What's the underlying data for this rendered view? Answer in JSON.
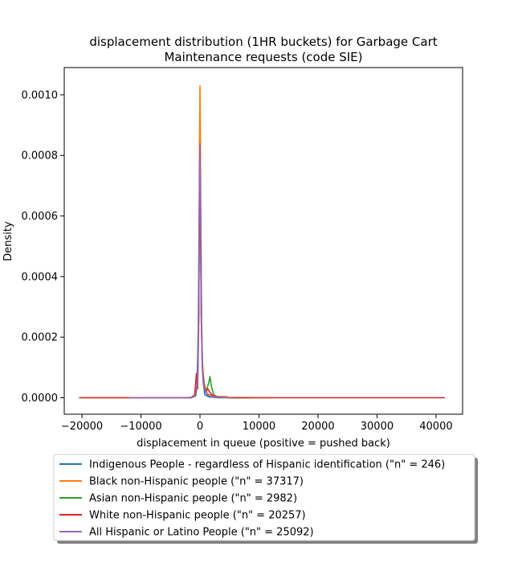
{
  "chart_data": {
    "type": "line",
    "title_line1": "displacement distribution (1HR buckets) for Garbage Cart",
    "title_line2": "Maintenance requests (code SIE)",
    "xlabel": "displacement in queue (positive = pushed back)",
    "ylabel": "Density",
    "xlim": [
      -23000,
      44500
    ],
    "ylim": [
      -5.44e-05,
      0.00109
    ],
    "x_ticks": [
      -20000,
      -10000,
      0,
      10000,
      20000,
      30000,
      40000
    ],
    "x_tick_labels": [
      "−20000",
      "−10000",
      "0",
      "10000",
      "20000",
      "30000",
      "40000"
    ],
    "y_ticks": [
      0.0,
      0.0002,
      0.0004,
      0.0006,
      0.0008,
      0.001
    ],
    "y_tick_labels": [
      "0.0000",
      "0.0002",
      "0.0004",
      "0.0006",
      "0.0008",
      "0.0010"
    ],
    "legend_position": "below plot",
    "series": [
      {
        "name": "Indigenous People - regardless of Hispanic identification (\"n\" = 246)",
        "color": "#1f77b4",
        "x": [
          -10000,
          -1500,
          -800,
          -500,
          -300,
          -150,
          0,
          150,
          300,
          500,
          800,
          1500,
          3000,
          9000
        ],
        "y": [
          0,
          0,
          5e-06,
          4e-05,
          0.00022,
          0.00058,
          0.0008,
          0.00058,
          0.00022,
          6e-05,
          1e-05,
          3e-06,
          0,
          0
        ]
      },
      {
        "name": "Black non-Hispanic people (\"n\" = 37317)",
        "color": "#ff7f0e",
        "x": [
          -20000,
          -2000,
          -800,
          -400,
          -200,
          -80,
          0,
          80,
          200,
          400,
          700,
          1000,
          1500,
          2500,
          4500,
          5000,
          12000
        ],
        "y": [
          0,
          0,
          5e-06,
          4e-05,
          0.0003,
          0.00085,
          0.00103,
          0.00085,
          0.00035,
          0.00012,
          5e-05,
          2e-05,
          1e-05,
          4e-06,
          4e-06,
          0,
          0
        ]
      },
      {
        "name": "Asian non-Hispanic people (\"n\" = 2982)",
        "color": "#2ca02c",
        "x": [
          -9000,
          -1500,
          -700,
          -400,
          -200,
          -80,
          0,
          80,
          200,
          400,
          700,
          1000,
          1500,
          1700,
          1900,
          2300,
          3000,
          8000
        ],
        "y": [
          0,
          0,
          8e-06,
          5e-05,
          0.0003,
          0.00068,
          0.00083,
          0.0006,
          0.00028,
          0.0001,
          4e-05,
          2e-05,
          5e-05,
          7e-05,
          4e-05,
          1e-05,
          0,
          0
        ]
      },
      {
        "name": "White non-Hispanic people (\"n\" = 20257)",
        "color": "#d62728",
        "x": [
          -20500,
          -10000,
          -1500,
          -900,
          -600,
          -400,
          -200,
          -80,
          0,
          100,
          250,
          450,
          700,
          1000,
          1300,
          1600,
          2000,
          3000,
          5000,
          41500
        ],
        "y": [
          0,
          0,
          0,
          1e-05,
          8e-05,
          3e-05,
          0.00025,
          0.00065,
          0.00073,
          0.00055,
          0.00023,
          8e-05,
          4e-05,
          2e-05,
          3e-05,
          2e-05,
          1e-05,
          3e-06,
          0,
          0
        ]
      },
      {
        "name": "All Hispanic or Latino People (\"n\" = 25092)",
        "color": "#9467bd",
        "x": [
          -12000,
          -1500,
          -800,
          -400,
          -200,
          -80,
          0,
          80,
          200,
          400,
          700,
          1200,
          2000,
          5000
        ],
        "y": [
          0,
          0,
          6e-06,
          5e-05,
          0.00032,
          0.00075,
          0.00084,
          0.00068,
          0.0003,
          0.0001,
          3e-05,
          1e-05,
          3e-06,
          0
        ]
      }
    ]
  }
}
